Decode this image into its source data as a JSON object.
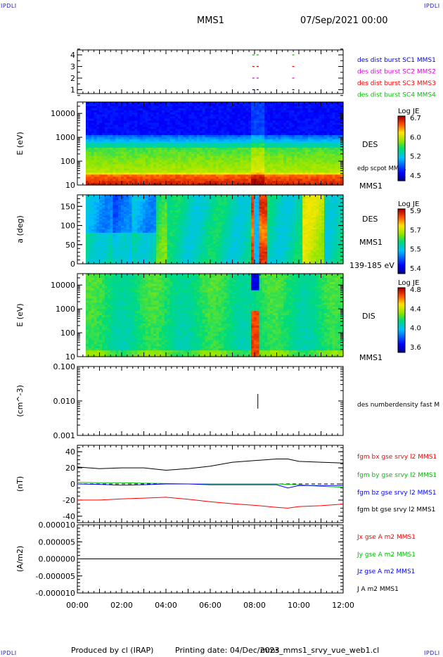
{
  "corners": {
    "tl": "IPDLI",
    "tr": "IPDLI",
    "bl": "IPDLI",
    "br": "IPDLI"
  },
  "header": {
    "spacecraft": "MMS1",
    "date": "07/Sep/2021 00:00"
  },
  "footer": {
    "producer": "Produced by cl (IRAP)",
    "printing": "Printing date: 04/Dec/2023",
    "script": "mms_mms1_srvy_vue_web1.cl"
  },
  "time_axis": {
    "ticks": [
      "00:00",
      "02:00",
      "04:00",
      "06:00",
      "08:00",
      "10:00",
      "12:00"
    ],
    "range_hours": [
      0,
      12
    ]
  },
  "chart_data": [
    {
      "type": "scatter",
      "panel": "availability",
      "yticks": [
        "4",
        "3",
        "2",
        "1"
      ],
      "series": [
        {
          "name": "des dist burst SC1 MMS1",
          "color": "#0000ff",
          "y": 1,
          "intervals_h": [
            [
              7.9,
              8.2
            ],
            [
              9.7,
              9.8
            ]
          ]
        },
        {
          "name": "des dist burst SC2 MMS2",
          "color": "#e000e0",
          "y": 2,
          "intervals_h": [
            [
              7.9,
              8.2
            ],
            [
              9.7,
              9.8
            ]
          ]
        },
        {
          "name": "des dist burst SC3 MMS3",
          "color": "#ff0000",
          "y": 3,
          "intervals_h": [
            [
              7.9,
              8.2
            ],
            [
              9.7,
              9.8
            ]
          ]
        },
        {
          "name": "des dist burst SC4 MMS4",
          "color": "#00c000",
          "y": 4,
          "intervals_h": [
            [
              7.9,
              8.2
            ],
            [
              9.7,
              9.8
            ]
          ]
        }
      ]
    },
    {
      "type": "heatmap",
      "panel": "des-energy",
      "ylabel": "E (eV)",
      "yticks": [
        "10000",
        "1000",
        "100",
        "10"
      ],
      "ylog": true,
      "ylim": [
        10,
        30000
      ],
      "label": "DES",
      "label2": "edp scpot MMS1",
      "sc_label": "MMS1",
      "colorbar": {
        "title": "Log JE",
        "ticks": [
          "6.7",
          "6.0",
          "5.2",
          "4.5"
        ],
        "range": [
          4.5,
          6.7
        ]
      }
    },
    {
      "type": "heatmap",
      "panel": "des-pitch",
      "ylabel": "a (deg)",
      "yticks": [
        "150",
        "100",
        "50",
        "0"
      ],
      "ylim": [
        0,
        180
      ],
      "label": "DES",
      "sc_label": "MMS1",
      "energy_band": "139-185 eV",
      "colorbar": {
        "title": "Log JE",
        "ticks": [
          "5.9",
          "5.7",
          "5.5",
          "5.4"
        ],
        "range": [
          5.4,
          5.9
        ]
      }
    },
    {
      "type": "heatmap",
      "panel": "dis-energy",
      "ylabel": "E (eV)",
      "yticks": [
        "10000",
        "1000",
        "100",
        "10"
      ],
      "ylog": true,
      "ylim": [
        10,
        30000
      ],
      "label": "DIS",
      "sc_label": "MMS1",
      "colorbar": {
        "title": "Log JE",
        "ticks": [
          "4.8",
          "4.4",
          "4.0",
          "3.6"
        ],
        "range": [
          3.6,
          4.8
        ]
      }
    },
    {
      "type": "line",
      "panel": "density",
      "ylabel": "(cm^-3)",
      "yticks": [
        "0.100",
        "0.010",
        "0.001"
      ],
      "ylog": true,
      "ylim": [
        0.001,
        0.1
      ],
      "series": [
        {
          "name": "des numberdensity fast M",
          "color": "#000000",
          "points": [
            [
              8.15,
              0.006
            ],
            [
              8.15,
              0.016
            ]
          ]
        }
      ]
    },
    {
      "type": "line",
      "panel": "magnetic-field",
      "ylabel": "(nT)",
      "yticks": [
        "40",
        "20",
        "0",
        "-20",
        "-40"
      ],
      "ylim": [
        -48,
        48
      ],
      "series": [
        {
          "name": "fgm bx gse srvy l2 MMS1",
          "color": "#ff0000",
          "points": [
            [
              0,
              -20
            ],
            [
              1,
              -20
            ],
            [
              2,
              -18.5
            ],
            [
              3,
              -17.5
            ],
            [
              4,
              -16.5
            ],
            [
              5,
              -19
            ],
            [
              6,
              -22
            ],
            [
              7,
              -24.5
            ],
            [
              8,
              -26.5
            ],
            [
              9,
              -29
            ],
            [
              9.5,
              -30
            ],
            [
              10,
              -28
            ],
            [
              11,
              -27
            ],
            [
              12,
              -25
            ]
          ]
        },
        {
          "name": "fgm by gse srvy l2 MMS1",
          "color": "#00c000",
          "points": [
            [
              0,
              2
            ],
            [
              1,
              1.5
            ],
            [
              2,
              1.5
            ],
            [
              3,
              1
            ],
            [
              4,
              0.5
            ],
            [
              5,
              0
            ],
            [
              6,
              0
            ],
            [
              7,
              0
            ],
            [
              8,
              0
            ],
            [
              9,
              0
            ],
            [
              10,
              -1
            ],
            [
              11,
              -3
            ],
            [
              12,
              -4
            ]
          ]
        },
        {
          "name": "fgm bz gse srvy l2 MMS1",
          "color": "#0000ff",
          "points": [
            [
              0,
              0
            ],
            [
              1,
              -0.5
            ],
            [
              2,
              -1.5
            ],
            [
              3,
              -1
            ],
            [
              4,
              0
            ],
            [
              5,
              0
            ],
            [
              6,
              -1
            ],
            [
              7,
              -1
            ],
            [
              8,
              -1
            ],
            [
              9,
              -1
            ],
            [
              9.5,
              -5
            ],
            [
              10,
              -2
            ],
            [
              11,
              -2
            ],
            [
              12,
              -2
            ]
          ]
        },
        {
          "name": "fgm bt gse srvy l2 MMS1",
          "color": "#000000",
          "points": [
            [
              0,
              21
            ],
            [
              1,
              19
            ],
            [
              2,
              20
            ],
            [
              3,
              20
            ],
            [
              4,
              17
            ],
            [
              5,
              19
            ],
            [
              6,
              22
            ],
            [
              7,
              27
            ],
            [
              8,
              29
            ],
            [
              9,
              31
            ],
            [
              9.5,
              31
            ],
            [
              10,
              28
            ],
            [
              11,
              27
            ],
            [
              12,
              26
            ]
          ]
        }
      ]
    },
    {
      "type": "line",
      "panel": "current-density",
      "ylabel": "(A/m2)",
      "yticks": [
        "0.000010",
        "0.000005",
        "0.000000",
        "-0.000005",
        "-0.000010"
      ],
      "ylim": [
        -1e-05,
        1e-05
      ],
      "series": [
        {
          "name": "Jx gse A m2 MMS1",
          "color": "#ff0000",
          "points": []
        },
        {
          "name": "Jy gse A m2 MMS1",
          "color": "#00c000",
          "points": []
        },
        {
          "name": "Jz gse A m2 MMS1",
          "color": "#0000ff",
          "points": []
        },
        {
          "name": "J A m2 MMS1",
          "color": "#000000",
          "points": [
            [
              0,
              0
            ],
            [
              12,
              0
            ]
          ]
        }
      ]
    }
  ]
}
